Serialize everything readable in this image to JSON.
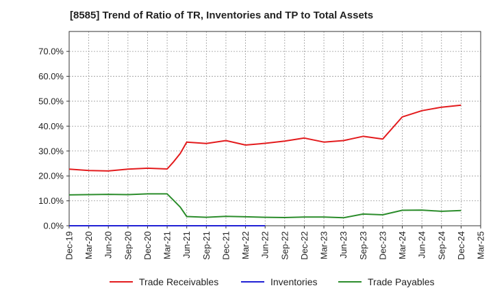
{
  "title": "[8585]  Trend of Ratio of TR, Inventories and TP to Total Assets",
  "chart_data": {
    "type": "line",
    "title": "[8585]  Trend of Ratio of TR, Inventories and TP to Total Assets",
    "xlabel": "",
    "ylabel": "",
    "ylim": [
      0,
      0.78
    ],
    "yticks": [
      0,
      0.1,
      0.2,
      0.3,
      0.4,
      0.5,
      0.6,
      0.7
    ],
    "ytick_labels": [
      "0.0%",
      "10.0%",
      "20.0%",
      "30.0%",
      "40.0%",
      "50.0%",
      "60.0%",
      "70.0%"
    ],
    "xtick_labels": [
      "Dec-19",
      "Mar-20",
      "Jun-20",
      "Sep-20",
      "Dec-20",
      "Mar-21",
      "Jun-21",
      "Sep-21",
      "Dec-21",
      "Mar-22",
      "Jun-22",
      "Sep-22",
      "Dec-22",
      "Mar-23",
      "Jun-23",
      "Sep-23",
      "Dec-23",
      "Mar-24",
      "Jun-24",
      "Sep-24",
      "Dec-24",
      "Mar-25"
    ],
    "grid": true,
    "legend_position": "bottom",
    "series": [
      {
        "name": "Trade Receivables",
        "color": "#e31a1c",
        "x": [
          "Dec-19",
          "Mar-20",
          "Jun-20",
          "Sep-20",
          "Dec-20",
          "Mar-21",
          "Apr-21",
          "May-21",
          "Jun-21",
          "Sep-21",
          "Dec-21",
          "Mar-22",
          "Jun-22",
          "Sep-22",
          "Dec-22",
          "Mar-23",
          "Jun-23",
          "Sep-23",
          "Dec-23",
          "Mar-24",
          "Jun-24",
          "Sep-24",
          "Dec-24"
        ],
        "values": [
          0.227,
          0.222,
          0.22,
          0.227,
          0.231,
          0.228,
          0.257,
          0.29,
          0.336,
          0.33,
          0.342,
          0.324,
          0.331,
          0.34,
          0.352,
          0.336,
          0.342,
          0.359,
          0.348,
          0.437,
          0.462,
          0.476,
          0.484
        ]
      },
      {
        "name": "Inventories",
        "color": "#1f1fd4",
        "x": [
          "Dec-19",
          "Mar-20",
          "Jun-20",
          "Sep-20",
          "Dec-20",
          "Mar-21",
          "Jun-21",
          "Sep-21",
          "Dec-21",
          "Mar-22",
          "Jun-22"
        ],
        "values": [
          0.0,
          0.0,
          0.0,
          0.0,
          0.0,
          0.0,
          0.0,
          0.0,
          0.0,
          0.0,
          0.0
        ]
      },
      {
        "name": "Trade Payables",
        "color": "#2a8c2a",
        "x": [
          "Dec-19",
          "Mar-20",
          "Jun-20",
          "Sep-20",
          "Dec-20",
          "Mar-21",
          "Apr-21",
          "May-21",
          "Jun-21",
          "Sep-21",
          "Dec-21",
          "Mar-22",
          "Jun-22",
          "Sep-22",
          "Dec-22",
          "Mar-23",
          "Jun-23",
          "Sep-23",
          "Dec-23",
          "Mar-24",
          "Jun-24",
          "Sep-24",
          "Dec-24"
        ],
        "values": [
          0.124,
          0.125,
          0.126,
          0.125,
          0.128,
          0.128,
          0.102,
          0.075,
          0.037,
          0.034,
          0.038,
          0.036,
          0.034,
          0.033,
          0.035,
          0.035,
          0.032,
          0.047,
          0.044,
          0.062,
          0.063,
          0.058,
          0.061
        ]
      }
    ]
  }
}
